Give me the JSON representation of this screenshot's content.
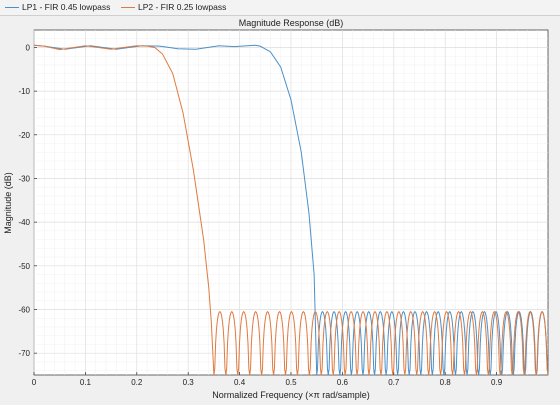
{
  "legend": {
    "items": [
      {
        "label": "LP1 - FIR 0.45 lowpass",
        "color": "#4a90c9"
      },
      {
        "label": "LP2 - FIR 0.25 lowpass",
        "color": "#e07a3f"
      }
    ]
  },
  "chart_data": {
    "type": "line",
    "title": "Magnitude Response (dB)",
    "xlabel": "Normalized Frequency (×π rad/sample)",
    "ylabel": "Magnitude (dB)",
    "xlim": [
      0,
      1
    ],
    "ylim": [
      -75,
      4
    ],
    "xticks": [
      0,
      0.1,
      0.2,
      0.3,
      0.4,
      0.5,
      0.6,
      0.7,
      0.8,
      0.9
    ],
    "xtick_labels": [
      "0",
      "0.1",
      "0.2",
      "0.3",
      "0.4",
      "0.5",
      "0.6",
      "0.7",
      "0.8",
      "0.9"
    ],
    "yticks": [
      0,
      -10,
      -20,
      -30,
      -40,
      -50,
      -60,
      -70
    ],
    "ytick_labels": [
      "0",
      "-10",
      "-20",
      "-30",
      "-40",
      "-50",
      "-60",
      "-70"
    ],
    "grid": true,
    "series": [
      {
        "name": "LP1 - FIR 0.45 lowpass",
        "color": "#4a90c9",
        "x": [
          0,
          0.02,
          0.06,
          0.11,
          0.16,
          0.21,
          0.245,
          0.28,
          0.315,
          0.36,
          0.39,
          0.43,
          0.44,
          0.46,
          0.48,
          0.5,
          0.52,
          0.535,
          0.545,
          0.55
        ],
        "y": [
          0.5,
          0.3,
          -0.4,
          0.4,
          -0.4,
          0.4,
          0.3,
          -0.3,
          -0.4,
          0.4,
          0.2,
          0.5,
          0.3,
          -1,
          -4.5,
          -12,
          -24,
          -38,
          -52,
          -75
        ],
        "stopband": {
          "start": 0.55,
          "end": 1.0,
          "lobes": 20,
          "peak": -60.5
        }
      },
      {
        "name": "LP2 - FIR 0.25 lowpass",
        "color": "#e07a3f",
        "x": [
          0,
          0.02,
          0.05,
          0.1,
          0.15,
          0.2,
          0.22,
          0.235,
          0.25,
          0.27,
          0.29,
          0.31,
          0.33,
          0.34,
          0.345,
          0.35
        ],
        "y": [
          0.5,
          0.3,
          -0.5,
          0.4,
          -0.4,
          0.4,
          0.3,
          0,
          -1.5,
          -6,
          -15,
          -28,
          -44,
          -55,
          -63,
          -75
        ],
        "stopband": {
          "start": 0.35,
          "end": 1.0,
          "lobes": 28,
          "peak": -60.5
        }
      }
    ]
  }
}
